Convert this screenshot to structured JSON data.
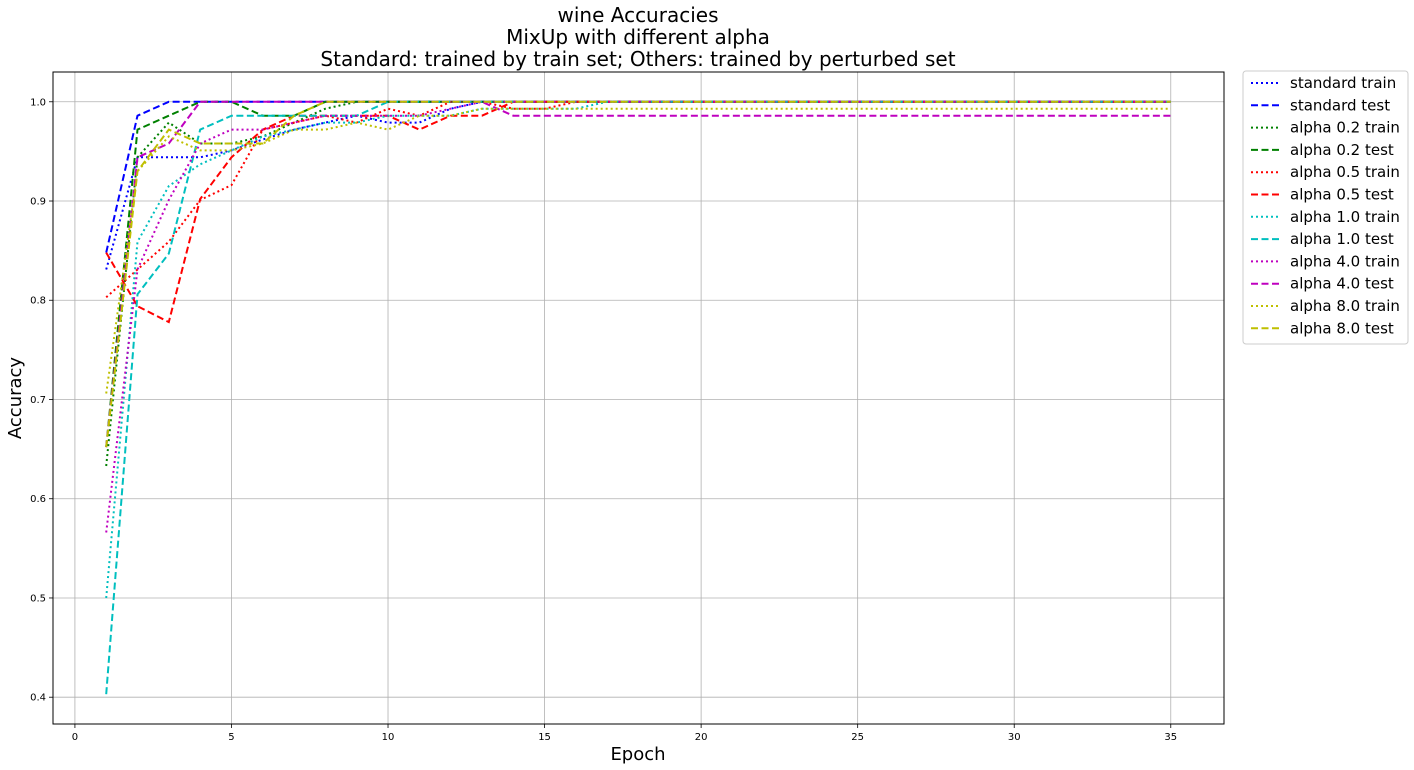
{
  "chart_data": {
    "type": "line",
    "title": [
      "wine Accuracies",
      "MixUp with different alpha",
      "Standard: trained by train set; Others: trained by perturbed set"
    ],
    "xlabel": "Epoch",
    "ylabel": "Accuracy",
    "xlim": [
      -0.7,
      36.7
    ],
    "ylim": [
      0.373,
      1.03
    ],
    "xticks": [
      0,
      5,
      10,
      15,
      20,
      25,
      30,
      35
    ],
    "yticks": [
      0.4,
      0.5,
      0.6,
      0.7,
      0.8,
      0.9,
      1.0
    ],
    "ytick_labels": [
      "0.4",
      "0.5",
      "0.6",
      "0.7",
      "0.8",
      "0.9",
      "1.0"
    ],
    "grid": true,
    "legend_position": "outside-top-right",
    "series": [
      {
        "name": "standard train",
        "color": "#0000ff",
        "style": "dotted",
        "points": [
          [
            1,
            0.831
          ],
          [
            2,
            0.944
          ],
          [
            3,
            0.944
          ],
          [
            4,
            0.944
          ],
          [
            5,
            0.951
          ],
          [
            6,
            0.962
          ],
          [
            7,
            0.972
          ],
          [
            8,
            0.979
          ],
          [
            9,
            0.986
          ],
          [
            10,
            0.979
          ],
          [
            11,
            0.979
          ],
          [
            12,
            0.993
          ],
          [
            13,
            1.0
          ],
          [
            14,
            1.0
          ],
          [
            15,
            1.0
          ],
          [
            35,
            1.0
          ]
        ]
      },
      {
        "name": "standard test",
        "color": "#0000ff",
        "style": "dashed",
        "points": [
          [
            1,
            0.848
          ],
          [
            2,
            0.986
          ],
          [
            3,
            1.0
          ],
          [
            4,
            1.0
          ],
          [
            5,
            1.0
          ],
          [
            35,
            1.0
          ]
        ]
      },
      {
        "name": "alpha 0.2 train",
        "color": "#008000",
        "style": "dotted",
        "points": [
          [
            1,
            0.633
          ],
          [
            2,
            0.944
          ],
          [
            3,
            0.979
          ],
          [
            4,
            0.958
          ],
          [
            5,
            0.958
          ],
          [
            6,
            0.965
          ],
          [
            7,
            0.979
          ],
          [
            8,
            0.993
          ],
          [
            9,
            1.0
          ],
          [
            10,
            1.0
          ],
          [
            35,
            1.0
          ]
        ]
      },
      {
        "name": "alpha 0.2 test",
        "color": "#008000",
        "style": "dashed",
        "points": [
          [
            1,
            0.652
          ],
          [
            2,
            0.972
          ],
          [
            3,
            0.986
          ],
          [
            4,
            1.0
          ],
          [
            5,
            1.0
          ],
          [
            6,
            0.986
          ],
          [
            7,
            0.986
          ],
          [
            8,
            1.0
          ],
          [
            9,
            1.0
          ],
          [
            35,
            1.0
          ]
        ]
      },
      {
        "name": "alpha 0.5 train",
        "color": "#ff0000",
        "style": "dotted",
        "points": [
          [
            1,
            0.803
          ],
          [
            2,
            0.831
          ],
          [
            3,
            0.859
          ],
          [
            4,
            0.901
          ],
          [
            5,
            0.916
          ],
          [
            6,
            0.972
          ],
          [
            7,
            0.979
          ],
          [
            8,
            0.986
          ],
          [
            9,
            0.979
          ],
          [
            10,
            0.993
          ],
          [
            11,
            0.986
          ],
          [
            12,
            1.0
          ],
          [
            13,
            1.0
          ],
          [
            14,
            0.993
          ],
          [
            15,
            0.993
          ],
          [
            16,
            1.0
          ],
          [
            35,
            1.0
          ]
        ]
      },
      {
        "name": "alpha 0.5 test",
        "color": "#ff0000",
        "style": "dashed",
        "points": [
          [
            1,
            0.848
          ],
          [
            2,
            0.794
          ],
          [
            3,
            0.778
          ],
          [
            4,
            0.902
          ],
          [
            5,
            0.944
          ],
          [
            6,
            0.972
          ],
          [
            7,
            0.986
          ],
          [
            8,
            0.986
          ],
          [
            9,
            0.986
          ],
          [
            10,
            0.986
          ],
          [
            11,
            0.972
          ],
          [
            12,
            0.986
          ],
          [
            13,
            0.986
          ],
          [
            14,
            1.0
          ],
          [
            35,
            1.0
          ]
        ]
      },
      {
        "name": "alpha 1.0 train",
        "color": "#00bfbf",
        "style": "dotted",
        "points": [
          [
            1,
            0.5
          ],
          [
            2,
            0.859
          ],
          [
            3,
            0.915
          ],
          [
            4,
            0.937
          ],
          [
            5,
            0.951
          ],
          [
            6,
            0.965
          ],
          [
            7,
            0.972
          ],
          [
            8,
            0.979
          ],
          [
            9,
            0.979
          ],
          [
            10,
            0.986
          ],
          [
            11,
            0.986
          ],
          [
            12,
            0.986
          ],
          [
            13,
            0.993
          ],
          [
            14,
            0.993
          ],
          [
            15,
            0.993
          ],
          [
            16,
            0.993
          ],
          [
            17,
            1.0
          ],
          [
            35,
            1.0
          ]
        ]
      },
      {
        "name": "alpha 1.0 test",
        "color": "#00bfbf",
        "style": "dashed",
        "points": [
          [
            1,
            0.403
          ],
          [
            2,
            0.806
          ],
          [
            3,
            0.847
          ],
          [
            4,
            0.972
          ],
          [
            5,
            0.986
          ],
          [
            6,
            0.986
          ],
          [
            7,
            0.986
          ],
          [
            8,
            0.986
          ],
          [
            9,
            0.986
          ],
          [
            10,
            1.0
          ],
          [
            35,
            1.0
          ]
        ]
      },
      {
        "name": "alpha 4.0 train",
        "color": "#bf00bf",
        "style": "dotted",
        "points": [
          [
            1,
            0.566
          ],
          [
            2,
            0.831
          ],
          [
            3,
            0.901
          ],
          [
            4,
            0.958
          ],
          [
            5,
            0.972
          ],
          [
            6,
            0.972
          ],
          [
            7,
            0.979
          ],
          [
            8,
            0.986
          ],
          [
            9,
            0.986
          ],
          [
            10,
            0.986
          ],
          [
            11,
            0.986
          ],
          [
            12,
            0.993
          ],
          [
            13,
            1.0
          ],
          [
            14,
            1.0
          ],
          [
            35,
            1.0
          ]
        ]
      },
      {
        "name": "alpha 4.0 test",
        "color": "#bf00bf",
        "style": "dashed",
        "points": [
          [
            1,
            0.652
          ],
          [
            2,
            0.944
          ],
          [
            3,
            0.958
          ],
          [
            4,
            1.0
          ],
          [
            5,
            1.0
          ],
          [
            13,
            1.0
          ],
          [
            14,
            0.986
          ],
          [
            35,
            0.986
          ]
        ]
      },
      {
        "name": "alpha 8.0 train",
        "color": "#bfbf00",
        "style": "dotted",
        "points": [
          [
            1,
            0.706
          ],
          [
            2,
            0.93
          ],
          [
            3,
            0.965
          ],
          [
            4,
            0.951
          ],
          [
            5,
            0.951
          ],
          [
            6,
            0.958
          ],
          [
            7,
            0.972
          ],
          [
            8,
            0.972
          ],
          [
            9,
            0.979
          ],
          [
            10,
            0.972
          ],
          [
            11,
            0.986
          ],
          [
            12,
            0.986
          ],
          [
            13,
            0.993
          ],
          [
            14,
            0.993
          ],
          [
            35,
            0.993
          ]
        ]
      },
      {
        "name": "alpha 8.0 test",
        "color": "#bfbf00",
        "style": "dashed",
        "points": [
          [
            1,
            0.652
          ],
          [
            2,
            0.93
          ],
          [
            3,
            0.972
          ],
          [
            4,
            0.958
          ],
          [
            5,
            0.958
          ],
          [
            6,
            0.958
          ],
          [
            7,
            0.986
          ],
          [
            8,
            1.0
          ],
          [
            9,
            1.0
          ],
          [
            35,
            1.0
          ]
        ]
      }
    ]
  }
}
